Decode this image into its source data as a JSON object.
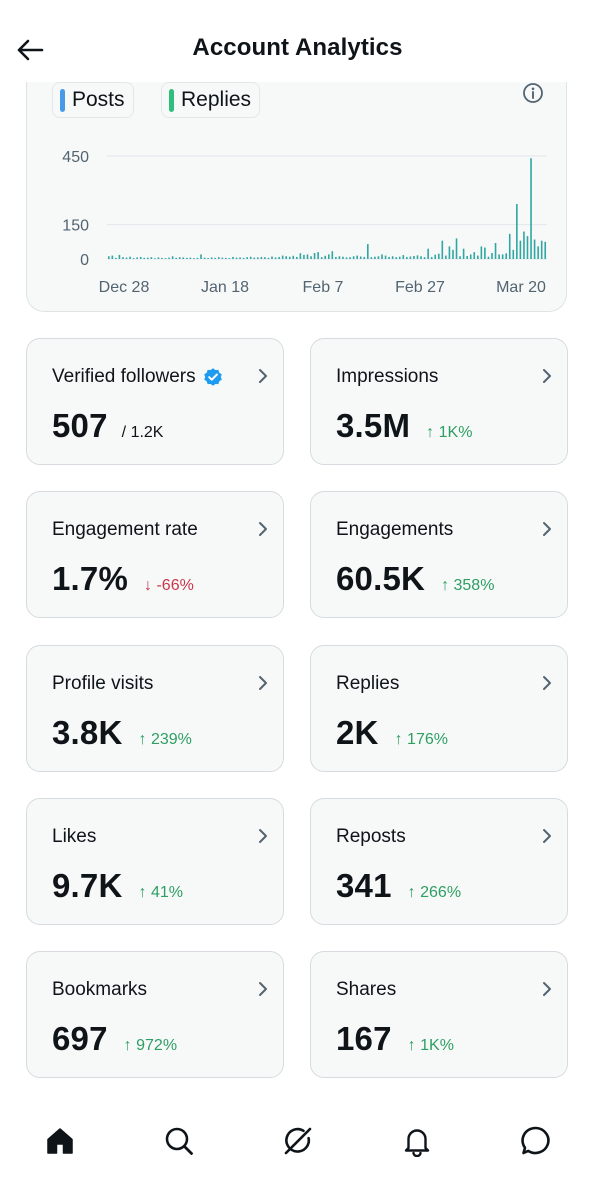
{
  "header": {
    "title": "Account Analytics",
    "back_icon": "arrow-left-icon"
  },
  "chart": {
    "legend": [
      {
        "label": "Posts",
        "color": "#4a99e9"
      },
      {
        "label": "Replies",
        "color": "#2fbe7d"
      }
    ],
    "info_icon": "info-icon"
  },
  "chart_data": {
    "type": "bar",
    "legend": [
      "Posts",
      "Replies"
    ],
    "y_ticks": [
      {
        "label": "450",
        "value": 450
      },
      {
        "label": "150",
        "value": 150
      },
      {
        "label": "0",
        "value": 0
      }
    ],
    "x_tick_labels": [
      "Dec 28",
      "Jan 18",
      "Feb 7",
      "Feb 27",
      "Mar 20"
    ],
    "ylim": [
      0,
      450
    ],
    "grid": true,
    "bar_color": "#2fa6a0",
    "series": [
      {
        "name": "Replies",
        "values": [
          12,
          15,
          5,
          18,
          8,
          6,
          10,
          4,
          7,
          9,
          5,
          6,
          8,
          3,
          7,
          5,
          4,
          6,
          12,
          5,
          8,
          7,
          5,
          6,
          4,
          5,
          20,
          6,
          4,
          7,
          5,
          8,
          6,
          5,
          4,
          9,
          6,
          7,
          5,
          8,
          10,
          6,
          7,
          9,
          8,
          5,
          11,
          7,
          9,
          15,
          12,
          10,
          14,
          9,
          25,
          18,
          20,
          12,
          26,
          30,
          8,
          14,
          20,
          34,
          9,
          12,
          10,
          7,
          8,
          12,
          15,
          11,
          9,
          65,
          8,
          10,
          12,
          20,
          15,
          9,
          12,
          8,
          10,
          17,
          9,
          11,
          13,
          16,
          12,
          8,
          45,
          9,
          19,
          23,
          80,
          15,
          55,
          40,
          90,
          12,
          45,
          13,
          20,
          30,
          15,
          55,
          50,
          10,
          26,
          70,
          20,
          20,
          25,
          110,
          40,
          240,
          80,
          120,
          100,
          440,
          85,
          55,
          80,
          75
        ]
      }
    ]
  },
  "stats": [
    {
      "label": "Verified followers",
      "value": "507",
      "sub": "/ 1.2K",
      "verified_icon": "verified-badge-icon"
    },
    {
      "label": "Impressions",
      "value": "3.5M",
      "change": "↑ 1K%",
      "trend": "up"
    },
    {
      "label": "Engagement rate",
      "value": "1.7%",
      "change": "↓ -66%",
      "trend": "down"
    },
    {
      "label": "Engagements",
      "value": "60.5K",
      "change": "↑ 358%",
      "trend": "up"
    },
    {
      "label": "Profile visits",
      "value": "3.8K",
      "change": "↑ 239%",
      "trend": "up"
    },
    {
      "label": "Replies",
      "value": "2K",
      "change": "↑ 176%",
      "trend": "up"
    },
    {
      "label": "Likes",
      "value": "9.7K",
      "change": "↑ 41%",
      "trend": "up"
    },
    {
      "label": "Reposts",
      "value": "341",
      "change": "↑ 266%",
      "trend": "up"
    },
    {
      "label": "Bookmarks",
      "value": "697",
      "change": "↑ 972%",
      "trend": "up"
    },
    {
      "label": "Shares",
      "value": "167",
      "change": "↑ 1K%",
      "trend": "up"
    }
  ],
  "nav": [
    {
      "name": "home-icon"
    },
    {
      "name": "search-icon"
    },
    {
      "name": "grok-icon"
    },
    {
      "name": "notifications-icon"
    },
    {
      "name": "messages-icon"
    }
  ],
  "colors": {
    "up": "#2e9e63",
    "down": "#c8354a",
    "verified": "#1d9bf0"
  }
}
